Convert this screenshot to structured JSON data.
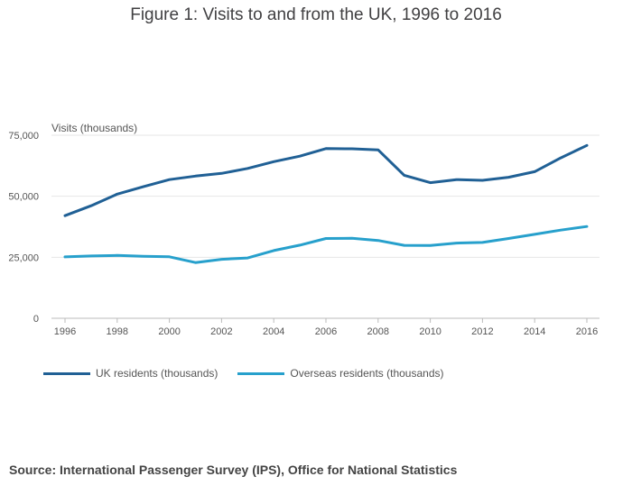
{
  "chart_data": {
    "type": "line",
    "title": "Figure 1: Visits to and from the UK, 1996 to 2016",
    "ylabel": "Visits (thousands)",
    "xlabel": "",
    "x": [
      1996,
      1997,
      1998,
      1999,
      2000,
      2001,
      2002,
      2003,
      2004,
      2005,
      2006,
      2007,
      2008,
      2009,
      2010,
      2011,
      2012,
      2013,
      2014,
      2015,
      2016
    ],
    "x_ticks": [
      "1996",
      "1998",
      "2000",
      "2002",
      "2004",
      "2006",
      "2008",
      "2010",
      "2012",
      "2014",
      "2016"
    ],
    "y_ticks": [
      "0",
      "25,000",
      "50,000",
      "75,000"
    ],
    "ylim": [
      0,
      75000
    ],
    "grid": true,
    "legend_position": "bottom-left",
    "series": [
      {
        "name": "UK residents (thousands)",
        "color": "#206095",
        "values": [
          42050,
          46100,
          50870,
          53900,
          56840,
          58280,
          59380,
          61420,
          64190,
          66440,
          69540,
          69450,
          69010,
          58610,
          55560,
          56840,
          56540,
          57790,
          60080,
          65720,
          70820
        ]
      },
      {
        "name": "Overseas residents (thousands)",
        "color": "#27a0cc",
        "values": [
          25160,
          25520,
          25750,
          25400,
          25210,
          22840,
          24180,
          24720,
          27750,
          29970,
          32710,
          32780,
          31890,
          29890,
          29800,
          30800,
          31080,
          32690,
          34380,
          36120,
          37610
        ]
      }
    ]
  },
  "source": "Source: International Passenger Survey (IPS), Office for National Statistics"
}
